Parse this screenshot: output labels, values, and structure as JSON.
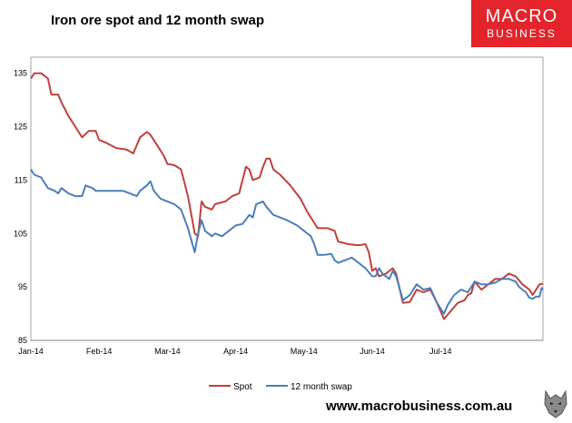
{
  "header": {
    "title": "Iron ore spot and 12 month swap"
  },
  "logo": {
    "line1": "MACRO",
    "line2": "BUSINESS",
    "bg_color": "#e3242b"
  },
  "footer": {
    "url": "www.macrobusiness.com.au",
    "icon": "wolf-logo-icon"
  },
  "chart_data": {
    "type": "line",
    "title": "Iron ore spot and 12 month swap",
    "xlabel": "",
    "ylabel": "",
    "x_ticks": [
      "Jan-14",
      "Feb-14",
      "Mar-14",
      "Apr-14",
      "May-14",
      "Jun-14",
      "Jul-14"
    ],
    "y_ticks": [
      85,
      95,
      105,
      115,
      125,
      135
    ],
    "xlim": [
      0,
      7.5
    ],
    "ylim": [
      85,
      138
    ],
    "grid": false,
    "legend_position": "bottom",
    "series": [
      {
        "name": "Spot",
        "color": "#c0403c",
        "points": [
          [
            0.0,
            134.0
          ],
          [
            0.05,
            135.0
          ],
          [
            0.15,
            135.0
          ],
          [
            0.25,
            134.0
          ],
          [
            0.3,
            131.0
          ],
          [
            0.4,
            131.0
          ],
          [
            0.45,
            129.5
          ],
          [
            0.55,
            127.0
          ],
          [
            0.65,
            125.0
          ],
          [
            0.75,
            123.0
          ],
          [
            0.85,
            124.2
          ],
          [
            0.95,
            124.2
          ],
          [
            1.0,
            122.5
          ],
          [
            1.1,
            122.0
          ],
          [
            1.25,
            121.0
          ],
          [
            1.4,
            120.7
          ],
          [
            1.5,
            120.0
          ],
          [
            1.6,
            123.0
          ],
          [
            1.7,
            124.0
          ],
          [
            1.75,
            123.5
          ],
          [
            1.85,
            121.5
          ],
          [
            1.95,
            119.5
          ],
          [
            2.0,
            118.0
          ],
          [
            2.1,
            117.8
          ],
          [
            2.2,
            117.0
          ],
          [
            2.3,
            112.0
          ],
          [
            2.4,
            105.0
          ],
          [
            2.45,
            104.5
          ],
          [
            2.5,
            111.0
          ],
          [
            2.55,
            110.0
          ],
          [
            2.65,
            109.5
          ],
          [
            2.7,
            110.5
          ],
          [
            2.85,
            111.0
          ],
          [
            2.95,
            112.0
          ],
          [
            3.05,
            112.5
          ],
          [
            3.1,
            115.0
          ],
          [
            3.15,
            117.5
          ],
          [
            3.2,
            117.0
          ],
          [
            3.25,
            115.0
          ],
          [
            3.35,
            115.5
          ],
          [
            3.4,
            117.5
          ],
          [
            3.45,
            119.0
          ],
          [
            3.5,
            119.0
          ],
          [
            3.55,
            117.0
          ],
          [
            3.65,
            116.0
          ],
          [
            3.8,
            114.0
          ],
          [
            3.95,
            111.5
          ],
          [
            4.05,
            109.0
          ],
          [
            4.15,
            107.0
          ],
          [
            4.2,
            106.0
          ],
          [
            4.35,
            106.0
          ],
          [
            4.45,
            105.5
          ],
          [
            4.5,
            103.5
          ],
          [
            4.65,
            103.0
          ],
          [
            4.8,
            102.8
          ],
          [
            4.9,
            103.0
          ],
          [
            4.95,
            101.5
          ],
          [
            5.0,
            98.0
          ],
          [
            5.05,
            98.5
          ],
          [
            5.1,
            97.0
          ],
          [
            5.2,
            97.5
          ],
          [
            5.3,
            98.5
          ],
          [
            5.35,
            97.5
          ],
          [
            5.45,
            92.0
          ],
          [
            5.55,
            92.2
          ],
          [
            5.65,
            94.5
          ],
          [
            5.75,
            94.0
          ],
          [
            5.85,
            94.5
          ],
          [
            5.95,
            92.0
          ],
          [
            6.05,
            89.0
          ],
          [
            6.15,
            90.5
          ],
          [
            6.25,
            92.0
          ],
          [
            6.35,
            92.5
          ],
          [
            6.4,
            93.5
          ],
          [
            6.45,
            93.8
          ],
          [
            6.5,
            96.0
          ],
          [
            6.6,
            94.5
          ],
          [
            6.7,
            95.5
          ],
          [
            6.8,
            96.5
          ],
          [
            6.9,
            96.5
          ],
          [
            7.0,
            97.5
          ],
          [
            7.1,
            97.0
          ],
          [
            7.2,
            95.5
          ],
          [
            7.3,
            94.5
          ],
          [
            7.35,
            93.5
          ],
          [
            7.4,
            94.5
          ],
          [
            7.45,
            95.5
          ],
          [
            7.5,
            95.6
          ]
        ]
      },
      {
        "name": "12 month swap",
        "color": "#4a7ebb",
        "points": [
          [
            0.0,
            117.0
          ],
          [
            0.05,
            116.0
          ],
          [
            0.15,
            115.5
          ],
          [
            0.25,
            113.5
          ],
          [
            0.35,
            113.0
          ],
          [
            0.4,
            112.5
          ],
          [
            0.45,
            113.5
          ],
          [
            0.55,
            112.5
          ],
          [
            0.65,
            112.0
          ],
          [
            0.75,
            112.0
          ],
          [
            0.8,
            114.0
          ],
          [
            0.9,
            113.5
          ],
          [
            0.95,
            113.0
          ],
          [
            1.05,
            113.0
          ],
          [
            1.2,
            113.0
          ],
          [
            1.35,
            113.0
          ],
          [
            1.45,
            112.5
          ],
          [
            1.55,
            112.0
          ],
          [
            1.6,
            113.0
          ],
          [
            1.7,
            114.0
          ],
          [
            1.75,
            114.8
          ],
          [
            1.8,
            113.0
          ],
          [
            1.9,
            111.5
          ],
          [
            2.0,
            111.0
          ],
          [
            2.1,
            110.5
          ],
          [
            2.2,
            109.5
          ],
          [
            2.3,
            106.0
          ],
          [
            2.4,
            101.5
          ],
          [
            2.45,
            105.0
          ],
          [
            2.5,
            107.5
          ],
          [
            2.55,
            105.5
          ],
          [
            2.65,
            104.5
          ],
          [
            2.7,
            105.0
          ],
          [
            2.8,
            104.5
          ],
          [
            2.9,
            105.5
          ],
          [
            3.0,
            106.5
          ],
          [
            3.1,
            106.8
          ],
          [
            3.2,
            108.5
          ],
          [
            3.25,
            108.0
          ],
          [
            3.3,
            110.5
          ],
          [
            3.4,
            111.0
          ],
          [
            3.45,
            110.0
          ],
          [
            3.55,
            108.5
          ],
          [
            3.65,
            108.0
          ],
          [
            3.75,
            107.5
          ],
          [
            3.9,
            106.5
          ],
          [
            4.0,
            105.5
          ],
          [
            4.1,
            104.5
          ],
          [
            4.15,
            103.0
          ],
          [
            4.2,
            101.0
          ],
          [
            4.3,
            101.0
          ],
          [
            4.4,
            101.2
          ],
          [
            4.45,
            100.0
          ],
          [
            4.5,
            99.5
          ],
          [
            4.6,
            100.0
          ],
          [
            4.7,
            100.5
          ],
          [
            4.8,
            99.5
          ],
          [
            4.9,
            98.5
          ],
          [
            5.0,
            97.0
          ],
          [
            5.05,
            97.0
          ],
          [
            5.1,
            98.5
          ],
          [
            5.15,
            97.5
          ],
          [
            5.25,
            96.5
          ],
          [
            5.3,
            98.0
          ],
          [
            5.35,
            97.0
          ],
          [
            5.45,
            92.5
          ],
          [
            5.55,
            93.5
          ],
          [
            5.65,
            95.5
          ],
          [
            5.75,
            94.5
          ],
          [
            5.85,
            94.8
          ],
          [
            5.95,
            92.0
          ],
          [
            6.05,
            90.0
          ],
          [
            6.1,
            91.5
          ],
          [
            6.2,
            93.5
          ],
          [
            6.3,
            94.5
          ],
          [
            6.4,
            94.0
          ],
          [
            6.5,
            96.0
          ],
          [
            6.6,
            95.5
          ],
          [
            6.7,
            95.5
          ],
          [
            6.8,
            95.8
          ],
          [
            6.9,
            96.5
          ],
          [
            7.0,
            96.5
          ],
          [
            7.1,
            96.0
          ],
          [
            7.15,
            95.0
          ],
          [
            7.25,
            94.0
          ],
          [
            7.3,
            93.0
          ],
          [
            7.35,
            92.8
          ],
          [
            7.4,
            93.2
          ],
          [
            7.45,
            93.2
          ],
          [
            7.48,
            94.8
          ],
          [
            7.5,
            94.5
          ]
        ]
      }
    ]
  }
}
